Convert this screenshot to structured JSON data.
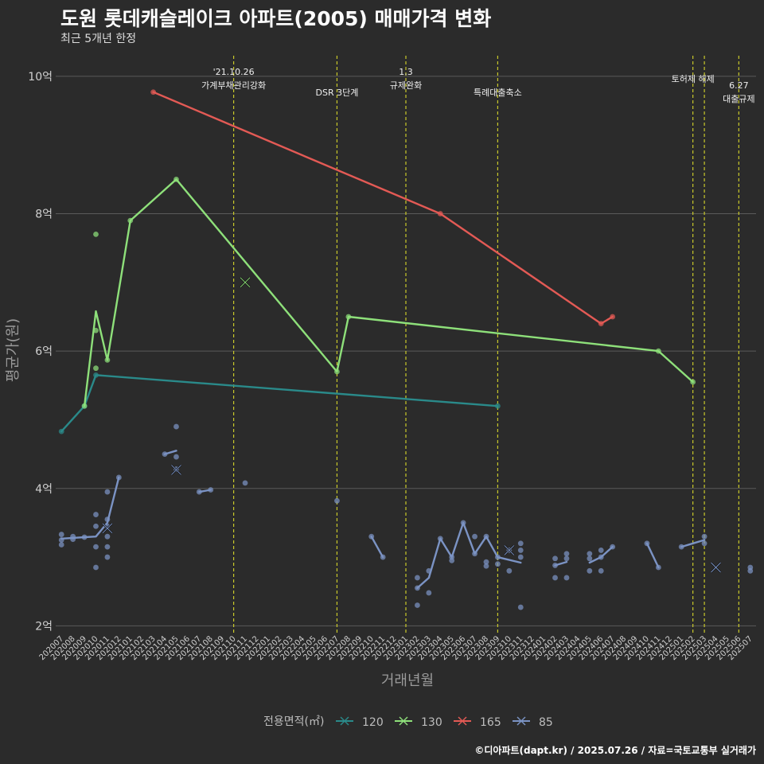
{
  "header": {
    "title": "도원 롯데캐슬레이크 아파트(2005) 매매가격 변화",
    "subtitle": "최근 5개년 한정"
  },
  "footer": {
    "credit": "©디아파트(dapt.kr) / 2025.07.26 / 자료=국토교통부 실거래가"
  },
  "chart_data": {
    "type": "line",
    "xlabel": "거래년월",
    "ylabel": "평균가(원)",
    "months": [
      "202007",
      "202008",
      "202009",
      "202010",
      "202011",
      "202012",
      "202101",
      "202102",
      "202103",
      "202104",
      "202105",
      "202106",
      "202107",
      "202108",
      "202109",
      "202110",
      "202111",
      "202112",
      "202201",
      "202202",
      "202203",
      "202204",
      "202205",
      "202206",
      "202207",
      "202208",
      "202209",
      "202210",
      "202211",
      "202212",
      "202301",
      "202302",
      "202303",
      "202304",
      "202305",
      "202306",
      "202307",
      "202308",
      "202309",
      "202310",
      "202311",
      "202312",
      "202401",
      "202402",
      "202403",
      "202404",
      "202405",
      "202406",
      "202407",
      "202408",
      "202409",
      "202410",
      "202411",
      "202412",
      "202501",
      "202502",
      "202503",
      "202504",
      "202505",
      "202506",
      "202507"
    ],
    "y_ticks": [
      {
        "value": 2,
        "label": "2억"
      },
      {
        "value": 4,
        "label": "4억"
      },
      {
        "value": 6,
        "label": "6억"
      },
      {
        "value": 8,
        "label": "8억"
      },
      {
        "value": 10,
        "label": "10억"
      }
    ],
    "ylim": [
      1.9,
      10.3
    ],
    "legend": {
      "title": "전용면적(㎡)",
      "position": "bottom"
    },
    "annotations": [
      {
        "month": "202110",
        "lines": [
          "'21.10.26",
          "가계부채관리강화"
        ]
      },
      {
        "month": "202207",
        "lines": [
          "DSR 3단계"
        ]
      },
      {
        "month": "202301",
        "lines": [
          "1.3",
          "규제완화"
        ]
      },
      {
        "month": "202309",
        "lines": [
          "특례대출축소"
        ]
      },
      {
        "month": "202502",
        "lines": [
          "토허제 해제"
        ]
      },
      {
        "month": "202503",
        "lines": [
          ""
        ]
      },
      {
        "month": "202506",
        "lines": [
          "6.27",
          "대출규제"
        ]
      }
    ],
    "series": [
      {
        "name": "120",
        "color": "#2a8a8a",
        "line": [
          [
            "202007",
            4.83
          ],
          [
            "202009",
            5.2
          ],
          [
            "202010",
            5.65
          ],
          [
            "202309",
            5.2
          ]
        ],
        "points": [
          [
            "202007",
            4.83
          ],
          [
            "202009",
            5.2
          ],
          [
            "202010",
            5.65
          ],
          [
            "202309",
            5.2
          ]
        ],
        "crosses": []
      },
      {
        "name": "130",
        "color": "#8ee07a",
        "line": [
          [
            "202009",
            5.2
          ],
          [
            "202010",
            6.58
          ],
          [
            "202011",
            5.87
          ],
          [
            "202101",
            7.9
          ],
          [
            "202105",
            8.5
          ],
          [
            "202207",
            5.7
          ],
          [
            "202208",
            6.5
          ],
          [
            "202411",
            6.0
          ],
          [
            "202502",
            5.55
          ]
        ],
        "points": [
          [
            "202009",
            5.2
          ],
          [
            "202010",
            7.7
          ],
          [
            "202010",
            6.3
          ],
          [
            "202010",
            5.75
          ],
          [
            "202011",
            5.87
          ],
          [
            "202101",
            7.9
          ],
          [
            "202105",
            8.5
          ],
          [
            "202207",
            5.7
          ],
          [
            "202208",
            6.5
          ],
          [
            "202411",
            6.0
          ],
          [
            "202502",
            5.55
          ]
        ],
        "crosses": [
          [
            "202111",
            7.0
          ]
        ]
      },
      {
        "name": "165",
        "color": "#e35a55",
        "line": [
          [
            "202103",
            9.77
          ],
          [
            "202304",
            8.0
          ],
          [
            "202406",
            6.4
          ],
          [
            "202407",
            6.5
          ]
        ],
        "points": [
          [
            "202103",
            9.77
          ],
          [
            "202304",
            8.0
          ],
          [
            "202406",
            6.4
          ],
          [
            "202407",
            6.5
          ]
        ],
        "crosses": []
      },
      {
        "name": "85",
        "color": "#7b93c4",
        "lines": [
          [
            [
              "202007",
              3.27
            ],
            [
              "202008",
              3.28
            ],
            [
              "202009",
              3.29
            ],
            [
              "202010",
              3.3
            ],
            [
              "202011",
              3.5
            ],
            [
              "202012",
              4.16
            ]
          ],
          [
            [
              "202104",
              4.5
            ],
            [
              "202105",
              4.55
            ]
          ],
          [
            [
              "202107",
              3.95
            ],
            [
              "202108",
              3.98
            ]
          ],
          [
            [
              "202210",
              3.3
            ],
            [
              "202211",
              3.0
            ]
          ],
          [
            [
              "202302",
              2.55
            ],
            [
              "202303",
              2.7
            ],
            [
              "202304",
              3.27
            ],
            [
              "202305",
              3.0
            ],
            [
              "202306",
              3.5
            ],
            [
              "202307",
              3.05
            ],
            [
              "202308",
              3.3
            ],
            [
              "202309",
              3.0
            ],
            [
              "202311",
              2.92
            ]
          ],
          [
            [
              "202402",
              2.88
            ],
            [
              "202403",
              2.93
            ]
          ],
          [
            [
              "202405",
              2.92
            ],
            [
              "202406",
              3.0
            ],
            [
              "202407",
              3.15
            ]
          ],
          [
            [
              "202410",
              3.2
            ],
            [
              "202411",
              2.85
            ]
          ],
          [
            [
              "202501",
              3.15
            ],
            [
              "202502",
              3.2
            ],
            [
              "202503",
              3.25
            ]
          ]
        ],
        "points": [
          [
            "202007",
            3.33
          ],
          [
            "202007",
            3.25
          ],
          [
            "202007",
            3.18
          ],
          [
            "202008",
            3.3
          ],
          [
            "202008",
            3.26
          ],
          [
            "202009",
            3.29
          ],
          [
            "202010",
            3.62
          ],
          [
            "202010",
            3.45
          ],
          [
            "202010",
            3.15
          ],
          [
            "202010",
            2.85
          ],
          [
            "202011",
            3.95
          ],
          [
            "202011",
            3.55
          ],
          [
            "202011",
            3.45
          ],
          [
            "202011",
            3.3
          ],
          [
            "202011",
            3.15
          ],
          [
            "202011",
            3.0
          ],
          [
            "202012",
            4.16
          ],
          [
            "202104",
            4.5
          ],
          [
            "202105",
            4.9
          ],
          [
            "202105",
            4.46
          ],
          [
            "202105",
            4.28
          ],
          [
            "202107",
            3.95
          ],
          [
            "202108",
            3.98
          ],
          [
            "202111",
            4.08
          ],
          [
            "202207",
            3.82
          ],
          [
            "202210",
            3.3
          ],
          [
            "202211",
            3.0
          ],
          [
            "202302",
            2.7
          ],
          [
            "202302",
            2.55
          ],
          [
            "202302",
            2.3
          ],
          [
            "202303",
            2.8
          ],
          [
            "202303",
            2.48
          ],
          [
            "202304",
            3.27
          ],
          [
            "202305",
            3.0
          ],
          [
            "202305",
            2.95
          ],
          [
            "202306",
            3.5
          ],
          [
            "202307",
            3.3
          ],
          [
            "202307",
            3.05
          ],
          [
            "202308",
            3.3
          ],
          [
            "202308",
            2.93
          ],
          [
            "202308",
            2.87
          ],
          [
            "202309",
            2.9
          ],
          [
            "202309",
            3.0
          ],
          [
            "202310",
            3.1
          ],
          [
            "202310",
            2.8
          ],
          [
            "202311",
            3.2
          ],
          [
            "202311",
            3.1
          ],
          [
            "202311",
            3.0
          ],
          [
            "202311",
            2.27
          ],
          [
            "202402",
            2.98
          ],
          [
            "202402",
            2.88
          ],
          [
            "202402",
            2.7
          ],
          [
            "202403",
            3.05
          ],
          [
            "202403",
            2.98
          ],
          [
            "202403",
            2.7
          ],
          [
            "202405",
            3.05
          ],
          [
            "202405",
            2.98
          ],
          [
            "202405",
            2.8
          ],
          [
            "202406",
            3.1
          ],
          [
            "202406",
            3.0
          ],
          [
            "202406",
            2.8
          ],
          [
            "202407",
            3.15
          ],
          [
            "202410",
            3.2
          ],
          [
            "202411",
            2.85
          ],
          [
            "202501",
            3.15
          ],
          [
            "202503",
            3.3
          ],
          [
            "202503",
            3.2
          ],
          [
            "202507",
            2.85
          ],
          [
            "202507",
            2.8
          ]
        ],
        "crosses": [
          [
            "202011",
            3.42
          ],
          [
            "202105",
            4.27
          ],
          [
            "202310",
            3.1
          ],
          [
            "202504",
            2.85
          ]
        ]
      }
    ]
  }
}
